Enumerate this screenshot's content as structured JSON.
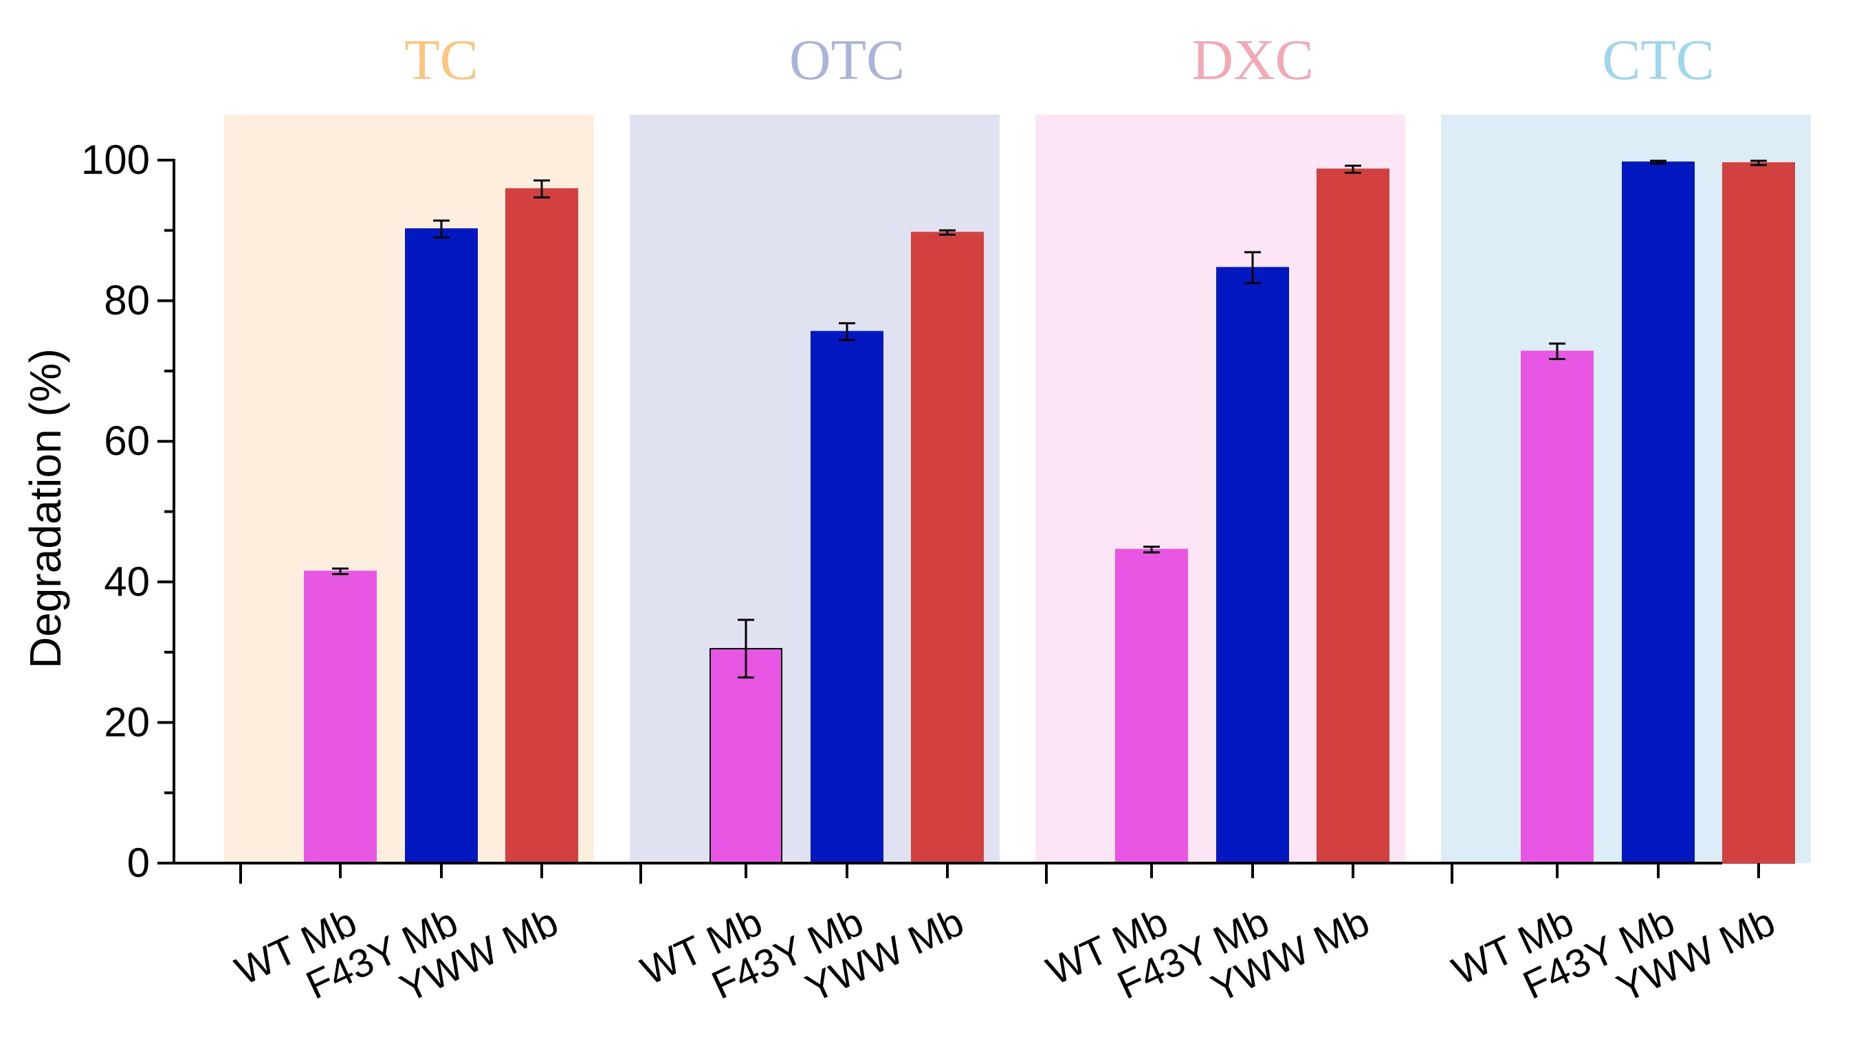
{
  "chart_data": {
    "type": "bar",
    "ylabel": "Degradation (%)",
    "xlabel": "",
    "ylim": [
      0,
      100
    ],
    "yticks": [
      "0",
      "20",
      "40",
      "60",
      "80",
      "100"
    ],
    "groups": [
      {
        "name": "TC",
        "title_color": "#fbc680",
        "panel_color": "#fdeedd",
        "categories": [
          "WT Mb",
          "F43Y Mb",
          "YWW Mb"
        ],
        "values": [
          41.5,
          90.2,
          95.9
        ],
        "errors": [
          0.4,
          1.2,
          1.2
        ]
      },
      {
        "name": "OTC",
        "title_color": "#a9b4d8",
        "panel_color": "#e0e2f2",
        "categories": [
          "WT Mb",
          "F43Y Mb",
          "YWW Mb"
        ],
        "values": [
          30.5,
          75.6,
          89.7
        ],
        "errors": [
          4.1,
          1.2,
          0.3
        ]
      },
      {
        "name": "DXC",
        "title_color": "#f3a8b6",
        "panel_color": "#fce6f5",
        "categories": [
          "WT Mb",
          "F43Y Mb",
          "YWW Mb"
        ],
        "values": [
          44.6,
          84.7,
          98.7
        ],
        "errors": [
          0.4,
          2.2,
          0.5
        ]
      },
      {
        "name": "CTC",
        "title_color": "#9ed6ee",
        "panel_color": "#dcedf8",
        "categories": [
          "WT Mb",
          "F43Y Mb",
          "YWW Mb"
        ],
        "values": [
          72.8,
          99.7,
          99.6
        ],
        "errors": [
          1.1,
          0.2,
          0.3
        ]
      }
    ],
    "bar_colors": [
      "#e757e3",
      "#0318c0",
      "#d24040"
    ]
  }
}
